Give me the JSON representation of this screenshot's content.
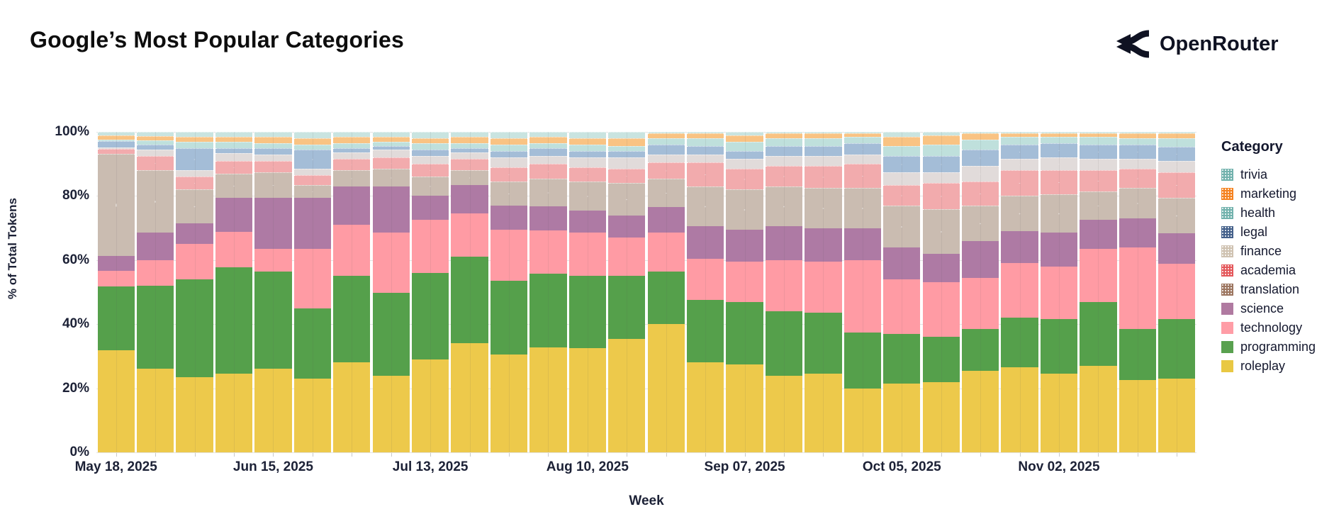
{
  "header": {
    "title": "Google’s Most Popular Categories",
    "brand": "OpenRouter"
  },
  "chart_data": {
    "type": "bar",
    "variant": "stacked-normalized",
    "title": "Google’s Most Popular Categories",
    "xlabel": "Week",
    "ylabel": "% of Total Tokens",
    "ylim": [
      0,
      100
    ],
    "grid": true,
    "legend_position": "right",
    "legend_title": "Category",
    "y_ticks": [
      {
        "value": 0,
        "label": "0%"
      },
      {
        "value": 20,
        "label": "20%"
      },
      {
        "value": 40,
        "label": "40%"
      },
      {
        "value": 60,
        "label": "60%"
      },
      {
        "value": 80,
        "label": "80%"
      },
      {
        "value": 100,
        "label": "100%"
      }
    ],
    "x": [
      "May 18, 2025",
      "May 25, 2025",
      "Jun 01, 2025",
      "Jun 08, 2025",
      "Jun 15, 2025",
      "Jun 22, 2025",
      "Jun 29, 2025",
      "Jul 06, 2025",
      "Jul 13, 2025",
      "Jul 20, 2025",
      "Jul 27, 2025",
      "Aug 03, 2025",
      "Aug 10, 2025",
      "Aug 17, 2025",
      "Aug 24, 2025",
      "Aug 31, 2025",
      "Sep 07, 2025",
      "Sep 14, 2025",
      "Sep 21, 2025",
      "Sep 28, 2025",
      "Oct 05, 2025",
      "Oct 12, 2025",
      "Oct 19, 2025",
      "Oct 26, 2025",
      "Nov 02, 2025",
      "Nov 09, 2025",
      "Nov 16, 2025",
      "Nov 23, 2025"
    ],
    "x_labeled_tick_indices": [
      0,
      4,
      8,
      12,
      16,
      20,
      24
    ],
    "x_labeled_ticks": [
      "May 18, 2025",
      "Jun 15, 2025",
      "Jul 13, 2025",
      "Aug 10, 2025",
      "Sep 07, 2025",
      "Oct 05, 2025",
      "Nov 02, 2025"
    ],
    "stack_order_bottom_to_top": [
      "roleplay",
      "programming",
      "technology",
      "science",
      "translation",
      "academia",
      "finance",
      "legal",
      "health",
      "marketing",
      "trivia"
    ],
    "series": [
      {
        "name": "trivia",
        "legend_color": "#72b2ad",
        "bar_color": "#c9e4e0",
        "textured": true,
        "values": [
          1.2,
          1.3,
          1.5,
          1.5,
          1.5,
          2,
          1.5,
          1.5,
          2,
          1.5,
          2,
          1.5,
          2,
          2,
          0.5,
          0.5,
          1,
          0.5,
          0.5,
          0.5,
          1.5,
          1,
          0.5,
          0.5,
          0.5,
          0.5,
          0.5,
          0.5
        ]
      },
      {
        "name": "marketing",
        "legend_color": "#f5821f",
        "bar_color": "#f9c383",
        "textured": true,
        "values": [
          1.3,
          1.4,
          1.5,
          1.5,
          2,
          2,
          2,
          1.5,
          1.5,
          2,
          2,
          2,
          2,
          2.5,
          1.5,
          1.5,
          2,
          1.5,
          1.5,
          1,
          3,
          3,
          2,
          1,
          1,
          1,
          1.5,
          1.5
        ]
      },
      {
        "name": "health",
        "legend_color": "#72b2ad",
        "bar_color": "#bfe0dc",
        "textured": true,
        "values": [
          0.4,
          1.3,
          2,
          2,
          1.5,
          1.5,
          1.5,
          1.5,
          2,
          1.5,
          2,
          1.5,
          2,
          1.5,
          2,
          2.5,
          3,
          2.5,
          2.5,
          2,
          3,
          3.5,
          3,
          2.5,
          2,
          2.5,
          2,
          2.5
        ]
      },
      {
        "name": "legal",
        "legend_color": "#44608a",
        "bar_color": "#a4bdd7",
        "textured": true,
        "values": [
          2,
          1.5,
          7,
          1.5,
          2,
          6,
          1.5,
          1,
          2,
          1.5,
          2,
          2.5,
          2,
          2,
          3,
          2.5,
          2.5,
          3,
          3,
          3.5,
          5,
          5,
          5,
          4.5,
          4.5,
          4.5,
          4.5,
          4.5
        ]
      },
      {
        "name": "finance",
        "legend_color": "#cfc2b1",
        "bar_color": "#e1dbda",
        "textured": true,
        "values": [
          0.4,
          2,
          2,
          2.5,
          2,
          2,
          2,
          2.5,
          2.5,
          2,
          3,
          2.5,
          3,
          3.5,
          2.5,
          2.5,
          3,
          3,
          3,
          3,
          4,
          3.5,
          5,
          3.5,
          4,
          3.5,
          3,
          3.5
        ]
      },
      {
        "name": "academia",
        "legend_color": "#e4575a",
        "bar_color": "#f2abad",
        "textured": true,
        "values": [
          1.5,
          4.5,
          4,
          4,
          3.5,
          3,
          3.5,
          3.5,
          4,
          3.5,
          4.5,
          4.5,
          4.5,
          4.5,
          5,
          7.5,
          6.5,
          6.5,
          7,
          7.5,
          6.5,
          8,
          7.5,
          8,
          7.5,
          6.5,
          6,
          8
        ]
      },
      {
        "name": "translation",
        "legend_color": "#9c755f",
        "bar_color": "#cabcb1",
        "textured": true,
        "values": [
          32.2,
          19.5,
          10.5,
          7.5,
          8,
          4,
          5,
          5.5,
          6,
          4.5,
          7.5,
          8.5,
          9,
          10,
          9,
          12.5,
          12.5,
          12.5,
          12.5,
          12.5,
          13,
          14,
          11,
          11,
          12,
          9,
          9.5,
          11
        ]
      },
      {
        "name": "science",
        "legend_color": "#b07aa1",
        "bar_color": "#ae7aa4",
        "textured": false,
        "values": [
          4.5,
          8.5,
          6.5,
          10.5,
          16,
          16,
          12,
          14.5,
          7.5,
          9,
          7.5,
          7.5,
          7,
          7,
          8,
          10,
          10,
          10.5,
          10.5,
          10,
          10,
          9,
          11.5,
          10,
          10.5,
          9,
          9,
          9.5
        ]
      },
      {
        "name": "technology",
        "legend_color": "#ff9da6",
        "bar_color": "#ff9ba4",
        "textured": false,
        "values": [
          5,
          8,
          11,
          11,
          7,
          18.5,
          16,
          19,
          16.5,
          13.5,
          16,
          13.5,
          13.5,
          12,
          12,
          13,
          12.5,
          16,
          16,
          22.5,
          17,
          17,
          16,
          17,
          16.5,
          16.5,
          25.5,
          17
        ]
      },
      {
        "name": "programming",
        "legend_color": "#59a14f",
        "bar_color": "#55a04b",
        "textured": false,
        "values": [
          20,
          26,
          30.5,
          33,
          30.5,
          22,
          27,
          26,
          27,
          27,
          23,
          23,
          22.5,
          19.5,
          16.5,
          19.5,
          19.5,
          20,
          19,
          17.5,
          15.5,
          14,
          13,
          15.5,
          17,
          20,
          16,
          18.5
        ]
      },
      {
        "name": "roleplay",
        "legend_color": "#e9c843",
        "bar_color": "#edc94b",
        "textured": false,
        "values": [
          32,
          26,
          23.5,
          24.5,
          26,
          23,
          28,
          24,
          29,
          34,
          30.5,
          32.5,
          32.5,
          35.5,
          40,
          28,
          27.5,
          24,
          24.5,
          20,
          21.5,
          22,
          25.5,
          26.5,
          24.5,
          27,
          22.5,
          23
        ]
      }
    ]
  }
}
